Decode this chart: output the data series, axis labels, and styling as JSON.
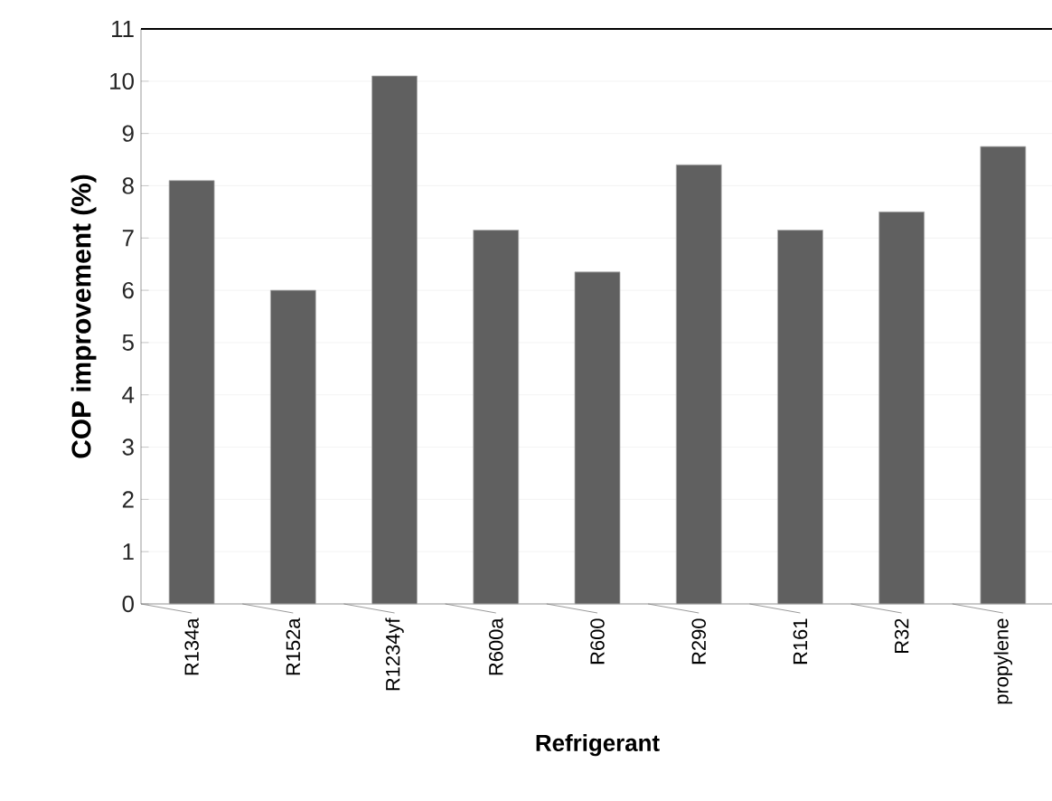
{
  "chart_data": {
    "type": "bar",
    "xlabel": "Refrigerant",
    "ylabel": "COP improvement (%)",
    "categories": [
      "R134a",
      "R152a",
      "R1234yf",
      "R600a",
      "R600",
      "R290",
      "R161",
      "R32",
      "propylene"
    ],
    "values": [
      8.1,
      6.0,
      10.1,
      7.15,
      6.35,
      8.4,
      7.15,
      7.5,
      8.75
    ],
    "color": "#606060",
    "ylim": [
      0,
      11
    ],
    "yticks": [
      0,
      1,
      2,
      3,
      4,
      5,
      6,
      7,
      8,
      9,
      10,
      11
    ],
    "grid": "y"
  }
}
